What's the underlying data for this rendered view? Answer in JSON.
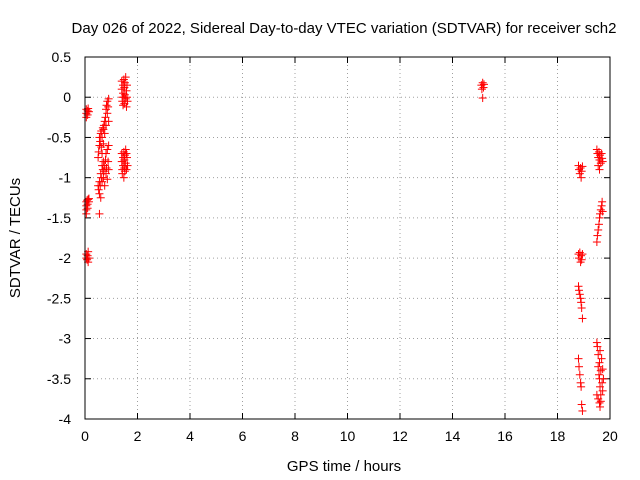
{
  "chart_data": {
    "type": "scatter",
    "title": "Day 026 of 2022, Sidereal Day-to-day VTEC variation (SDTVAR) for receiver sch2",
    "xlabel": "GPS time / hours",
    "ylabel": "SDTVAR / TECUs",
    "xlim": [
      0,
      20
    ],
    "ylim": [
      -4,
      0.5
    ],
    "xticks": [
      0,
      2,
      4,
      6,
      8,
      10,
      12,
      14,
      16,
      18,
      20
    ],
    "yticks": [
      0.5,
      0,
      -0.5,
      -1,
      -1.5,
      -2,
      -2.5,
      -3,
      -3.5,
      -4
    ],
    "xtick_labels": [
      "0",
      "2",
      "4",
      "6",
      "8",
      "10",
      "12",
      "14",
      "16",
      "18",
      "20"
    ],
    "ytick_labels": [
      "0.5",
      "0",
      "-0.5",
      "-1",
      "-1.5",
      "-2",
      "-2.5",
      "-3",
      "-3.5",
      "-4"
    ],
    "grid": true,
    "marker": "+",
    "color": "#ff0000",
    "series": [
      {
        "name": "SDTVAR",
        "points": [
          [
            0.05,
            -0.25
          ],
          [
            0.05,
            -0.2
          ],
          [
            0.05,
            -0.15
          ],
          [
            0.1,
            -0.22
          ],
          [
            0.1,
            -0.17
          ],
          [
            0.12,
            -0.14
          ],
          [
            0.15,
            -0.18
          ],
          [
            0.05,
            -1.3
          ],
          [
            0.05,
            -1.35
          ],
          [
            0.05,
            -1.4
          ],
          [
            0.05,
            -1.45
          ],
          [
            0.08,
            -1.28
          ],
          [
            0.1,
            -1.33
          ],
          [
            0.1,
            -1.38
          ],
          [
            0.12,
            -1.27
          ],
          [
            0.15,
            -1.3
          ],
          [
            0.15,
            -1.26
          ],
          [
            0.05,
            -1.95
          ],
          [
            0.05,
            -2.0
          ],
          [
            0.08,
            -2.02
          ],
          [
            0.1,
            -1.97
          ],
          [
            0.12,
            -1.92
          ],
          [
            0.12,
            -2.05
          ],
          [
            0.15,
            -2.0
          ],
          [
            0.5,
            -0.75
          ],
          [
            0.52,
            -0.68
          ],
          [
            0.55,
            -0.6
          ],
          [
            0.55,
            -0.5
          ],
          [
            0.58,
            -0.55
          ],
          [
            0.6,
            -0.45
          ],
          [
            0.62,
            -0.42
          ],
          [
            0.62,
            -0.62
          ],
          [
            0.65,
            -0.5
          ],
          [
            0.65,
            -0.7
          ],
          [
            0.68,
            -0.38
          ],
          [
            0.7,
            -0.4
          ],
          [
            0.7,
            -0.58
          ],
          [
            0.72,
            -0.35
          ],
          [
            0.75,
            -0.3
          ],
          [
            0.75,
            -0.45
          ],
          [
            0.78,
            -0.25
          ],
          [
            0.8,
            -0.15
          ],
          [
            0.8,
            -0.35
          ],
          [
            0.82,
            -0.1
          ],
          [
            0.85,
            -0.05
          ],
          [
            0.85,
            -0.2
          ],
          [
            0.88,
            -0.12
          ],
          [
            0.9,
            -0.02
          ],
          [
            0.9,
            -0.3
          ],
          [
            0.5,
            -1.1
          ],
          [
            0.52,
            -1.15
          ],
          [
            0.55,
            -1.05
          ],
          [
            0.55,
            -1.2
          ],
          [
            0.58,
            -1.1
          ],
          [
            0.6,
            -1.25
          ],
          [
            0.6,
            -0.95
          ],
          [
            0.62,
            -1.0
          ],
          [
            0.65,
            -1.05
          ],
          [
            0.65,
            -0.85
          ],
          [
            0.68,
            -0.9
          ],
          [
            0.7,
            -1.0
          ],
          [
            0.7,
            -0.8
          ],
          [
            0.72,
            -0.92
          ],
          [
            0.75,
            -0.85
          ],
          [
            0.75,
            -1.1
          ],
          [
            0.78,
            -0.78
          ],
          [
            0.8,
            -0.95
          ],
          [
            0.8,
            -0.7
          ],
          [
            0.82,
            -0.88
          ],
          [
            0.85,
            -0.65
          ],
          [
            0.85,
            -1.02
          ],
          [
            0.88,
            -0.8
          ],
          [
            0.9,
            -0.6
          ],
          [
            0.9,
            -0.9
          ],
          [
            0.55,
            -1.45
          ],
          [
            1.4,
            0.2
          ],
          [
            1.4,
            0.1
          ],
          [
            1.42,
            0.0
          ],
          [
            1.42,
            -0.05
          ],
          [
            1.45,
            0.15
          ],
          [
            1.45,
            0.05
          ],
          [
            1.45,
            -0.1
          ],
          [
            1.48,
            0.22
          ],
          [
            1.48,
            0.0
          ],
          [
            1.5,
            0.12
          ],
          [
            1.5,
            -0.08
          ],
          [
            1.52,
            0.18
          ],
          [
            1.52,
            0.03
          ],
          [
            1.55,
            0.25
          ],
          [
            1.55,
            -0.02
          ],
          [
            1.58,
            0.08
          ],
          [
            1.58,
            -0.12
          ],
          [
            1.6,
            0.15
          ],
          [
            1.6,
            0.0
          ],
          [
            1.62,
            -0.05
          ],
          [
            1.4,
            -0.7
          ],
          [
            1.4,
            -0.8
          ],
          [
            1.42,
            -0.9
          ],
          [
            1.42,
            -0.95
          ],
          [
            1.45,
            -0.75
          ],
          [
            1.45,
            -0.85
          ],
          [
            1.48,
            -0.68
          ],
          [
            1.48,
            -1.0
          ],
          [
            1.5,
            -0.78
          ],
          [
            1.5,
            -0.88
          ],
          [
            1.52,
            -0.72
          ],
          [
            1.52,
            -0.92
          ],
          [
            1.55,
            -0.65
          ],
          [
            1.55,
            -0.82
          ],
          [
            1.58,
            -0.7
          ],
          [
            1.58,
            -0.9
          ],
          [
            1.6,
            -0.75
          ],
          [
            1.62,
            -0.85
          ],
          [
            15.1,
            0.15
          ],
          [
            15.12,
            0.1
          ],
          [
            15.15,
            0.18
          ],
          [
            15.18,
            0.12
          ],
          [
            15.2,
            0.16
          ],
          [
            15.15,
            -0.01
          ],
          [
            18.8,
            -0.85
          ],
          [
            18.82,
            -0.9
          ],
          [
            18.85,
            -0.95
          ],
          [
            18.88,
            -0.88
          ],
          [
            18.9,
            -1.0
          ],
          [
            18.92,
            -0.92
          ],
          [
            18.95,
            -0.86
          ],
          [
            18.8,
            -1.95
          ],
          [
            18.82,
            -2.0
          ],
          [
            18.85,
            -1.93
          ],
          [
            18.88,
            -2.05
          ],
          [
            18.9,
            -1.97
          ],
          [
            18.92,
            -2.02
          ],
          [
            18.95,
            -1.95
          ],
          [
            18.8,
            -2.35
          ],
          [
            18.82,
            -2.4
          ],
          [
            18.85,
            -2.45
          ],
          [
            18.88,
            -2.5
          ],
          [
            18.9,
            -2.55
          ],
          [
            18.92,
            -2.62
          ],
          [
            18.95,
            -2.75
          ],
          [
            18.8,
            -3.25
          ],
          [
            18.82,
            -3.35
          ],
          [
            18.85,
            -3.45
          ],
          [
            18.88,
            -3.55
          ],
          [
            18.9,
            -3.6
          ],
          [
            18.92,
            -3.82
          ],
          [
            18.95,
            -3.9
          ],
          [
            19.5,
            -0.65
          ],
          [
            19.52,
            -0.7
          ],
          [
            19.55,
            -0.75
          ],
          [
            19.55,
            -0.85
          ],
          [
            19.58,
            -0.68
          ],
          [
            19.6,
            -0.78
          ],
          [
            19.6,
            -0.9
          ],
          [
            19.62,
            -0.72
          ],
          [
            19.65,
            -0.82
          ],
          [
            19.68,
            -0.7
          ],
          [
            19.7,
            -0.76
          ],
          [
            19.72,
            -0.8
          ],
          [
            19.5,
            -1.8
          ],
          [
            19.52,
            -1.72
          ],
          [
            19.55,
            -1.65
          ],
          [
            19.58,
            -1.58
          ],
          [
            19.6,
            -1.5
          ],
          [
            19.62,
            -1.45
          ],
          [
            19.65,
            -1.4
          ],
          [
            19.68,
            -1.35
          ],
          [
            19.7,
            -1.3
          ],
          [
            19.72,
            -1.42
          ],
          [
            19.5,
            -3.05
          ],
          [
            19.52,
            -3.1
          ],
          [
            19.55,
            -3.2
          ],
          [
            19.55,
            -3.35
          ],
          [
            19.58,
            -3.45
          ],
          [
            19.6,
            -3.5
          ],
          [
            19.6,
            -3.3
          ],
          [
            19.62,
            -3.6
          ],
          [
            19.62,
            -3.15
          ],
          [
            19.65,
            -3.7
          ],
          [
            19.65,
            -3.4
          ],
          [
            19.68,
            -3.25
          ],
          [
            19.7,
            -3.55
          ],
          [
            19.72,
            -3.65
          ],
          [
            19.72,
            -3.38
          ],
          [
            19.75,
            -3.5
          ],
          [
            19.5,
            -3.7
          ],
          [
            19.55,
            -3.75
          ],
          [
            19.6,
            -3.8
          ],
          [
            19.62,
            -3.85
          ],
          [
            19.65,
            -3.78
          ]
        ]
      }
    ]
  }
}
